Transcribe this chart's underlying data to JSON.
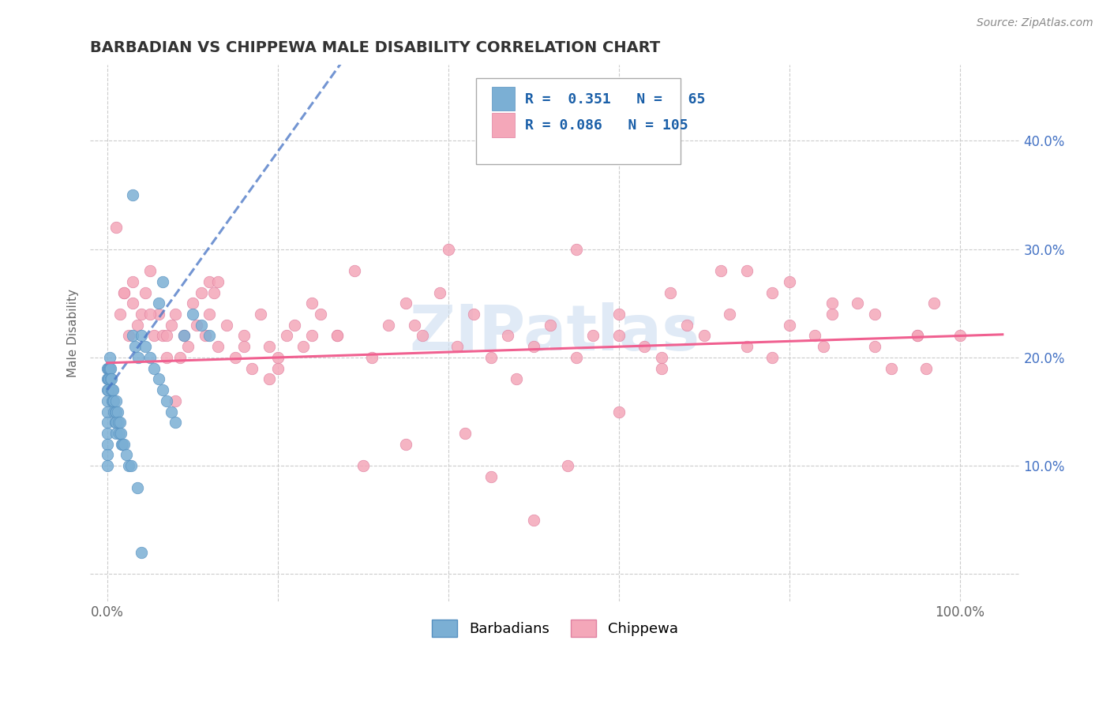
{
  "title": "BARBADIAN VS CHIPPEWA MALE DISABILITY CORRELATION CHART",
  "source": "Source: ZipAtlas.com",
  "ylabel": "Male Disability",
  "x_ticks": [
    0.0,
    0.2,
    0.4,
    0.6,
    0.8,
    1.0
  ],
  "y_ticks": [
    0.0,
    0.1,
    0.2,
    0.3,
    0.4
  ],
  "xlim": [
    -0.02,
    1.07
  ],
  "ylim": [
    -0.025,
    0.47
  ],
  "barbadian_color": "#7bafd4",
  "barbadian_edge_color": "#5590c0",
  "chippewa_color": "#f4a7b9",
  "chippewa_edge_color": "#e080a0",
  "barbadian_line_color": "#4472c4",
  "chippewa_line_color": "#f06090",
  "watermark_color": "#ccddf0",
  "background_color": "#ffffff",
  "grid_color": "#cccccc",
  "title_color": "#333333",
  "tick_color": "#4472c4",
  "legend_text_color": "#1a5fa8",
  "legend_r1": "R =  0.351",
  "legend_n1": "N =   65",
  "legend_r2": "R = 0.086",
  "legend_n2": "N = 105",
  "barb_x_seed": [
    0.0,
    0.0,
    0.0,
    0.0,
    0.0,
    0.0,
    0.0,
    0.0,
    0.0,
    0.0,
    0.001,
    0.001,
    0.001,
    0.002,
    0.002,
    0.003,
    0.003,
    0.004,
    0.004,
    0.005,
    0.005,
    0.006,
    0.006,
    0.007,
    0.007,
    0.008,
    0.008,
    0.009,
    0.009,
    0.01,
    0.01,
    0.01,
    0.01,
    0.012,
    0.013,
    0.014,
    0.015,
    0.016,
    0.017,
    0.018,
    0.02,
    0.022,
    0.025,
    0.028,
    0.03,
    0.033,
    0.036,
    0.04,
    0.045,
    0.05,
    0.055,
    0.06,
    0.065,
    0.07,
    0.075,
    0.08,
    0.09,
    0.1,
    0.11,
    0.12,
    0.065,
    0.03,
    0.04,
    0.035,
    0.06
  ],
  "barb_y_seed": [
    0.19,
    0.18,
    0.17,
    0.16,
    0.15,
    0.14,
    0.13,
    0.12,
    0.11,
    0.1,
    0.19,
    0.18,
    0.17,
    0.19,
    0.18,
    0.2,
    0.19,
    0.19,
    0.18,
    0.18,
    0.17,
    0.17,
    0.16,
    0.17,
    0.16,
    0.16,
    0.15,
    0.15,
    0.14,
    0.16,
    0.15,
    0.14,
    0.13,
    0.15,
    0.14,
    0.13,
    0.14,
    0.13,
    0.12,
    0.12,
    0.12,
    0.11,
    0.1,
    0.1,
    0.22,
    0.21,
    0.2,
    0.22,
    0.21,
    0.2,
    0.19,
    0.18,
    0.17,
    0.16,
    0.15,
    0.14,
    0.22,
    0.24,
    0.23,
    0.22,
    0.27,
    0.35,
    0.02,
    0.08,
    0.25
  ],
  "chipp_x_seed": [
    0.01,
    0.015,
    0.02,
    0.025,
    0.03,
    0.035,
    0.04,
    0.045,
    0.05,
    0.055,
    0.06,
    0.065,
    0.07,
    0.075,
    0.08,
    0.085,
    0.09,
    0.095,
    0.1,
    0.105,
    0.11,
    0.115,
    0.12,
    0.125,
    0.13,
    0.14,
    0.15,
    0.16,
    0.17,
    0.18,
    0.19,
    0.2,
    0.21,
    0.22,
    0.23,
    0.24,
    0.25,
    0.27,
    0.29,
    0.31,
    0.33,
    0.35,
    0.37,
    0.39,
    0.41,
    0.43,
    0.45,
    0.47,
    0.5,
    0.52,
    0.55,
    0.57,
    0.6,
    0.63,
    0.65,
    0.68,
    0.7,
    0.73,
    0.75,
    0.78,
    0.8,
    0.83,
    0.85,
    0.88,
    0.9,
    0.92,
    0.95,
    0.97,
    1.0,
    0.02,
    0.05,
    0.08,
    0.12,
    0.16,
    0.2,
    0.24,
    0.3,
    0.36,
    0.42,
    0.48,
    0.54,
    0.6,
    0.66,
    0.72,
    0.78,
    0.84,
    0.9,
    0.96,
    0.03,
    0.07,
    0.13,
    0.19,
    0.27,
    0.35,
    0.45,
    0.55,
    0.65,
    0.75,
    0.85,
    0.95,
    0.4,
    0.6,
    0.8,
    0.5
  ],
  "chipp_y_seed": [
    0.32,
    0.24,
    0.26,
    0.22,
    0.27,
    0.23,
    0.24,
    0.26,
    0.28,
    0.22,
    0.24,
    0.22,
    0.2,
    0.23,
    0.24,
    0.2,
    0.22,
    0.21,
    0.25,
    0.23,
    0.26,
    0.22,
    0.24,
    0.26,
    0.21,
    0.23,
    0.2,
    0.22,
    0.19,
    0.24,
    0.21,
    0.2,
    0.22,
    0.23,
    0.21,
    0.25,
    0.24,
    0.22,
    0.28,
    0.2,
    0.23,
    0.25,
    0.22,
    0.26,
    0.21,
    0.24,
    0.2,
    0.22,
    0.21,
    0.23,
    0.2,
    0.22,
    0.24,
    0.21,
    0.2,
    0.23,
    0.22,
    0.24,
    0.21,
    0.2,
    0.23,
    0.22,
    0.24,
    0.25,
    0.21,
    0.19,
    0.22,
    0.25,
    0.22,
    0.26,
    0.24,
    0.16,
    0.27,
    0.21,
    0.19,
    0.22,
    0.1,
    0.23,
    0.13,
    0.18,
    0.1,
    0.15,
    0.26,
    0.28,
    0.26,
    0.21,
    0.24,
    0.19,
    0.25,
    0.22,
    0.27,
    0.18,
    0.22,
    0.12,
    0.09,
    0.3,
    0.19,
    0.28,
    0.25,
    0.22,
    0.3,
    0.22,
    0.27,
    0.05
  ]
}
